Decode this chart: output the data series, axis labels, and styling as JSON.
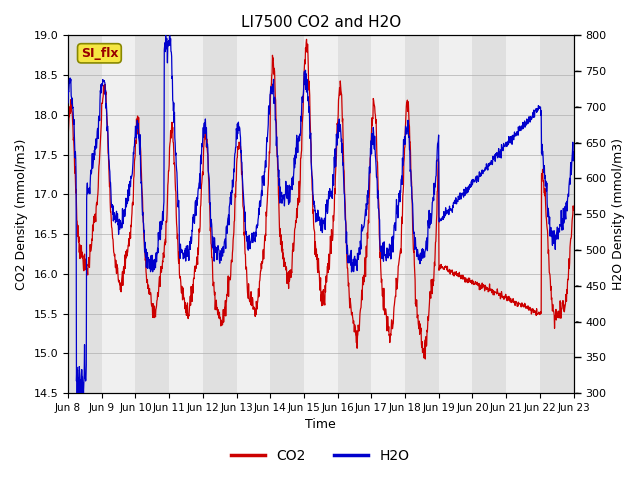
{
  "title": "LI7500 CO2 and H2O",
  "xlabel": "Time",
  "ylabel_left": "CO2 Density (mmol/m3)",
  "ylabel_right": "H2O Density (mmol/m3)",
  "ylim_left": [
    14.5,
    19.0
  ],
  "ylim_right": [
    300,
    800
  ],
  "x_tick_labels": [
    "Jun 8",
    "Jun 9",
    "Jun 10",
    "Jun 11",
    "Jun 12",
    "Jun 13",
    "Jun 14",
    "Jun 15",
    "Jun 16",
    "Jun 17",
    "Jun 18",
    "Jun 19",
    "Jun 20",
    "Jun 21",
    "Jun 22",
    "Jun 23"
  ],
  "background_color": "#ffffff",
  "co2_color": "#cc0000",
  "h2o_color": "#0000cc",
  "annotation_text": "SI_flx",
  "annotation_bg": "#f5e642",
  "annotation_border": "#888800",
  "band_colors": [
    "#e8e8e8",
    "#f8f8f8"
  ],
  "linewidth": 0.9
}
